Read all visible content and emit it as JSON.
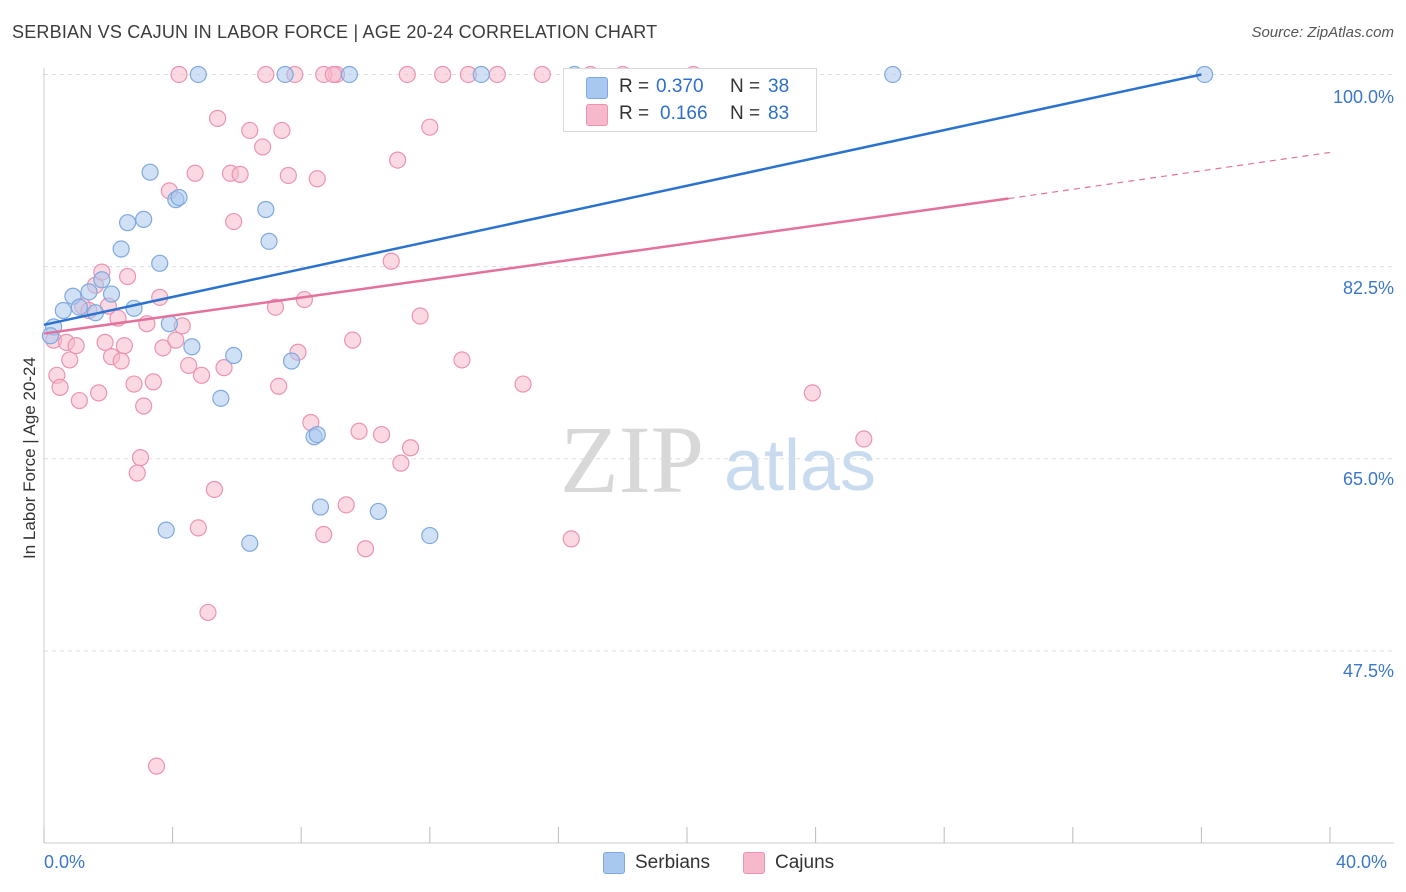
{
  "header": {
    "title": "SERBIAN VS CAJUN IN LABOR FORCE | AGE 20-24 CORRELATION CHART",
    "source": "Source: ZipAtlas.com"
  },
  "watermark": {
    "zip": "ZIP",
    "atlas": "atlas"
  },
  "legend_top": {
    "r_label": "R =",
    "n_label": "N =",
    "serbians": {
      "r": "0.370",
      "n": "38"
    },
    "cajuns": {
      "r": "0.166",
      "n": "83"
    }
  },
  "legend_bottom": {
    "serbians": "Serbians",
    "cajuns": "Cajuns"
  },
  "colors": {
    "serbians_fill": "#a9c8ef",
    "serbians_line": "#2b72d0",
    "cajuns_fill": "#f6b9cc",
    "cajuns_line": "#e4719c",
    "tick_text": "#3b78c8",
    "grid": "#dddddd"
  },
  "chart_data": {
    "type": "scatter",
    "title": "SERBIAN VS CAJUN IN LABOR FORCE | AGE 20-24 CORRELATION CHART",
    "xlabel": "",
    "ylabel": "In Labor Force | Age 20-24",
    "xlim": [
      0,
      40
    ],
    "ylim": [
      30,
      101.5
    ],
    "x_tick_labels": [
      "0.0%",
      "40.0%"
    ],
    "y_ticks": [
      47.5,
      65.0,
      82.5,
      100.0
    ],
    "y_tick_labels": [
      "47.5%",
      "65.0%",
      "82.5%",
      "100.0%"
    ],
    "grid": true,
    "legend_position": "top-center",
    "series": [
      {
        "name": "Serbians",
        "r": 0.37,
        "n": 38,
        "trend": {
          "x0": 0,
          "y0": 77.2,
          "x1": 36.0,
          "y1": 100.0,
          "dashed_to": null
        },
        "points": [
          [
            0.3,
            77.0
          ],
          [
            0.6,
            78.5
          ],
          [
            0.9,
            79.8
          ],
          [
            1.1,
            78.8
          ],
          [
            1.4,
            80.2
          ],
          [
            1.6,
            78.3
          ],
          [
            1.8,
            81.3
          ],
          [
            2.1,
            80.0
          ],
          [
            2.4,
            84.1
          ],
          [
            2.6,
            86.5
          ],
          [
            2.8,
            78.7
          ],
          [
            3.1,
            86.8
          ],
          [
            3.3,
            91.1
          ],
          [
            3.6,
            82.8
          ],
          [
            3.9,
            77.3
          ],
          [
            4.1,
            88.6
          ],
          [
            4.2,
            88.8
          ],
          [
            4.6,
            75.2
          ],
          [
            4.8,
            100.0
          ],
          [
            5.5,
            70.5
          ],
          [
            5.9,
            74.4
          ],
          [
            6.4,
            57.3
          ],
          [
            6.9,
            87.7
          ],
          [
            7.0,
            84.8
          ],
          [
            7.5,
            100.0
          ],
          [
            7.7,
            73.9
          ],
          [
            8.4,
            67.0
          ],
          [
            8.5,
            67.2
          ],
          [
            8.6,
            60.6
          ],
          [
            9.5,
            100.0
          ],
          [
            10.4,
            60.2
          ],
          [
            13.6,
            100.0
          ],
          [
            16.5,
            100.0
          ],
          [
            26.4,
            100.0
          ],
          [
            36.1,
            100.0
          ],
          [
            0.2,
            76.2
          ],
          [
            3.8,
            58.5
          ],
          [
            12.0,
            58.0
          ]
        ]
      },
      {
        "name": "Cajuns",
        "r": 0.166,
        "n": 83,
        "trend": {
          "x0": 0,
          "y0": 76.4,
          "x1": 30.0,
          "y1": 88.7,
          "dashed_to": [
            40,
            92.9
          ]
        },
        "points": [
          [
            0.3,
            75.8
          ],
          [
            0.4,
            72.6
          ],
          [
            0.5,
            71.5
          ],
          [
            0.7,
            75.6
          ],
          [
            0.8,
            74.0
          ],
          [
            1.0,
            75.3
          ],
          [
            1.1,
            70.3
          ],
          [
            1.2,
            78.9
          ],
          [
            1.4,
            78.5
          ],
          [
            1.6,
            80.8
          ],
          [
            1.7,
            71.0
          ],
          [
            1.8,
            82.0
          ],
          [
            1.9,
            75.6
          ],
          [
            2.0,
            78.9
          ],
          [
            2.1,
            74.3
          ],
          [
            2.3,
            77.8
          ],
          [
            2.4,
            73.9
          ],
          [
            2.5,
            75.3
          ],
          [
            2.6,
            81.6
          ],
          [
            2.8,
            71.8
          ],
          [
            2.9,
            63.7
          ],
          [
            3.0,
            65.1
          ],
          [
            3.1,
            69.8
          ],
          [
            3.2,
            77.3
          ],
          [
            3.4,
            72.0
          ],
          [
            3.6,
            79.7
          ],
          [
            3.7,
            75.1
          ],
          [
            3.9,
            89.4
          ],
          [
            4.1,
            75.8
          ],
          [
            4.3,
            77.1
          ],
          [
            4.5,
            73.5
          ],
          [
            4.7,
            91.0
          ],
          [
            4.8,
            58.7
          ],
          [
            4.9,
            72.6
          ],
          [
            5.1,
            51.0
          ],
          [
            5.3,
            62.2
          ],
          [
            5.4,
            96.0
          ],
          [
            5.6,
            73.3
          ],
          [
            5.8,
            91.0
          ],
          [
            5.9,
            86.6
          ],
          [
            6.1,
            90.9
          ],
          [
            6.4,
            94.9
          ],
          [
            6.8,
            93.4
          ],
          [
            7.2,
            78.8
          ],
          [
            7.3,
            71.6
          ],
          [
            7.4,
            94.9
          ],
          [
            7.6,
            90.8
          ],
          [
            7.8,
            100.0
          ],
          [
            7.9,
            74.7
          ],
          [
            8.1,
            79.5
          ],
          [
            8.3,
            68.3
          ],
          [
            8.5,
            90.5
          ],
          [
            8.7,
            58.1
          ],
          [
            9.1,
            100.0
          ],
          [
            9.4,
            60.8
          ],
          [
            9.6,
            75.8
          ],
          [
            9.8,
            67.5
          ],
          [
            10.0,
            56.8
          ],
          [
            10.5,
            67.2
          ],
          [
            10.8,
            83.0
          ],
          [
            11.0,
            92.2
          ],
          [
            11.1,
            64.6
          ],
          [
            11.4,
            66.0
          ],
          [
            11.7,
            78.0
          ],
          [
            12.0,
            95.2
          ],
          [
            12.4,
            100.0
          ],
          [
            13.0,
            74.0
          ],
          [
            14.9,
            71.8
          ],
          [
            15.5,
            100.0
          ],
          [
            16.4,
            57.7
          ],
          [
            17.0,
            100.0
          ],
          [
            18.0,
            100.0
          ],
          [
            20.2,
            100.0
          ],
          [
            23.9,
            71.0
          ],
          [
            25.5,
            66.8
          ],
          [
            4.2,
            100.0
          ],
          [
            8.7,
            100.0
          ],
          [
            11.3,
            100.0
          ],
          [
            13.2,
            100.0
          ],
          [
            14.1,
            100.0
          ],
          [
            3.5,
            37.0
          ],
          [
            9.0,
            100.0
          ],
          [
            6.9,
            100.0
          ]
        ]
      }
    ]
  }
}
